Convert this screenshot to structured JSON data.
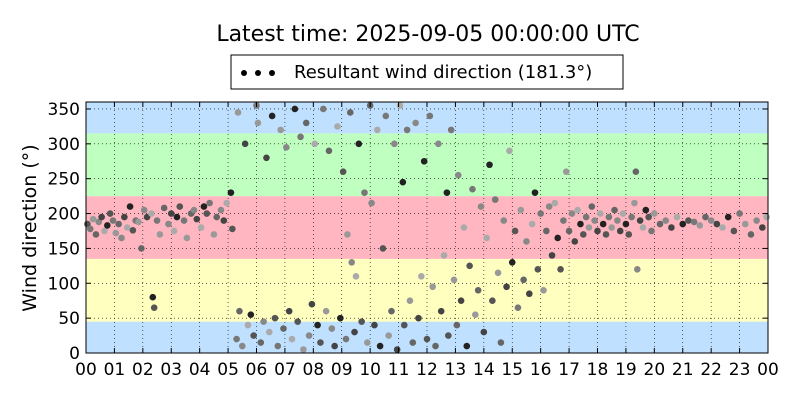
{
  "chart_data": {
    "type": "scatter",
    "title": "Latest time: 2025-09-05 00:00:00 UTC",
    "ylabel": "Wind direction (°)",
    "xlabel": "",
    "xlim": [
      0,
      24
    ],
    "ylim": [
      0,
      360
    ],
    "x_ticks": [
      "00",
      "01",
      "02",
      "03",
      "04",
      "05",
      "06",
      "07",
      "08",
      "09",
      "10",
      "11",
      "12",
      "13",
      "14",
      "15",
      "16",
      "17",
      "18",
      "19",
      "20",
      "21",
      "22",
      "23",
      "00"
    ],
    "y_ticks": [
      0,
      50,
      100,
      150,
      200,
      250,
      300,
      350
    ],
    "grid": "dotted",
    "legend": {
      "placement": "top-center",
      "label": "Resultant wind direction (181.3°)"
    },
    "bands": [
      {
        "from": 0,
        "to": 45,
        "color": "#bfe1ff"
      },
      {
        "from": 45,
        "to": 135,
        "color": "#ffffbf"
      },
      {
        "from": 135,
        "to": 225,
        "color": "#ffb6c1"
      },
      {
        "from": 225,
        "to": 315,
        "color": "#bfffbf"
      },
      {
        "from": 315,
        "to": 360,
        "color": "#bfe1ff"
      }
    ],
    "series": [
      {
        "marker": "dot",
        "points": [
          [
            0.05,
            185
          ],
          [
            0.15,
            178
          ],
          [
            0.25,
            192
          ],
          [
            0.35,
            170
          ],
          [
            0.45,
            188
          ],
          [
            0.55,
            195
          ],
          [
            0.65,
            175
          ],
          [
            0.75,
            183
          ],
          [
            0.85,
            200
          ],
          [
            0.95,
            190
          ],
          [
            1.05,
            172
          ],
          [
            1.15,
            185
          ],
          [
            1.25,
            165
          ],
          [
            1.35,
            195
          ],
          [
            1.45,
            180
          ],
          [
            1.55,
            210
          ],
          [
            1.65,
            176
          ],
          [
            1.75,
            190
          ],
          [
            1.85,
            188
          ],
          [
            1.95,
            150
          ],
          [
            2.05,
            205
          ],
          [
            2.15,
            195
          ],
          [
            2.3,
            200
          ],
          [
            2.35,
            80
          ],
          [
            2.4,
            65
          ],
          [
            2.5,
            190
          ],
          [
            2.6,
            170
          ],
          [
            2.75,
            208
          ],
          [
            2.9,
            185
          ],
          [
            3.0,
            200
          ],
          [
            3.1,
            175
          ],
          [
            3.2,
            195
          ],
          [
            3.3,
            210
          ],
          [
            3.45,
            190
          ],
          [
            3.55,
            165
          ],
          [
            3.7,
            200
          ],
          [
            3.8,
            205
          ],
          [
            3.9,
            192
          ],
          [
            4.05,
            180
          ],
          [
            4.15,
            210
          ],
          [
            4.25,
            200
          ],
          [
            4.35,
            215
          ],
          [
            4.5,
            170
          ],
          [
            4.6,
            195
          ],
          [
            4.75,
            205
          ],
          [
            4.85,
            190
          ],
          [
            4.95,
            215
          ],
          [
            5.1,
            230
          ],
          [
            5.15,
            178
          ],
          [
            5.3,
            20
          ],
          [
            5.35,
            345
          ],
          [
            5.4,
            60
          ],
          [
            5.5,
            10
          ],
          [
            5.6,
            300
          ],
          [
            5.7,
            40
          ],
          [
            5.8,
            55
          ],
          [
            5.9,
            25
          ],
          [
            6.0,
            355
          ],
          [
            6.05,
            330
          ],
          [
            6.15,
            15
          ],
          [
            6.25,
            45
          ],
          [
            6.35,
            280
          ],
          [
            6.45,
            30
          ],
          [
            6.55,
            340
          ],
          [
            6.65,
            50
          ],
          [
            6.75,
            10
          ],
          [
            6.85,
            320
          ],
          [
            6.95,
            35
          ],
          [
            7.05,
            295
          ],
          [
            7.15,
            60
          ],
          [
            7.25,
            20
          ],
          [
            7.35,
            350
          ],
          [
            7.45,
            45
          ],
          [
            7.55,
            310
          ],
          [
            7.65,
            5
          ],
          [
            7.75,
            330
          ],
          [
            7.85,
            25
          ],
          [
            7.95,
            70
          ],
          [
            8.05,
            300
          ],
          [
            8.15,
            40
          ],
          [
            8.25,
            15
          ],
          [
            8.35,
            350
          ],
          [
            8.45,
            60
          ],
          [
            8.55,
            290
          ],
          [
            8.65,
            35
          ],
          [
            8.75,
            10
          ],
          [
            8.85,
            325
          ],
          [
            8.95,
            50
          ],
          [
            9.05,
            260
          ],
          [
            9.15,
            20
          ],
          [
            9.2,
            170
          ],
          [
            9.3,
            345
          ],
          [
            9.35,
            130
          ],
          [
            9.45,
            30
          ],
          [
            9.5,
            110
          ],
          [
            9.6,
            300
          ],
          [
            9.7,
            45
          ],
          [
            9.8,
            230
          ],
          [
            9.9,
            15
          ],
          [
            10.0,
            355
          ],
          [
            10.05,
            215
          ],
          [
            10.15,
            40
          ],
          [
            10.25,
            320
          ],
          [
            10.35,
            10
          ],
          [
            10.45,
            150
          ],
          [
            10.55,
            340
          ],
          [
            10.65,
            25
          ],
          [
            10.75,
            60
          ],
          [
            10.85,
            300
          ],
          [
            10.95,
            5
          ],
          [
            11.05,
            355
          ],
          [
            11.15,
            245
          ],
          [
            11.2,
            40
          ],
          [
            11.3,
            320
          ],
          [
            11.4,
            75
          ],
          [
            11.5,
            15
          ],
          [
            11.6,
            330
          ],
          [
            11.7,
            50
          ],
          [
            11.8,
            110
          ],
          [
            11.9,
            275
          ],
          [
            12.0,
            20
          ],
          [
            12.1,
            340
          ],
          [
            12.2,
            95
          ],
          [
            12.3,
            10
          ],
          [
            12.4,
            300
          ],
          [
            12.5,
            60
          ],
          [
            12.6,
            140
          ],
          [
            12.7,
            230
          ],
          [
            12.75,
            25
          ],
          [
            12.85,
            320
          ],
          [
            12.95,
            105
          ],
          [
            13.05,
            40
          ],
          [
            13.1,
            255
          ],
          [
            13.2,
            75
          ],
          [
            13.3,
            180
          ],
          [
            13.4,
            10
          ],
          [
            13.5,
            125
          ],
          [
            13.6,
            235
          ],
          [
            13.7,
            55
          ],
          [
            13.8,
            90
          ],
          [
            13.9,
            210
          ],
          [
            14.0,
            30
          ],
          [
            14.1,
            165
          ],
          [
            14.2,
            270
          ],
          [
            14.3,
            75
          ],
          [
            14.4,
            220
          ],
          [
            14.5,
            115
          ],
          [
            14.6,
            15
          ],
          [
            14.7,
            190
          ],
          [
            14.8,
            95
          ],
          [
            14.9,
            290
          ],
          [
            15.0,
            130
          ],
          [
            15.1,
            175
          ],
          [
            15.2,
            65
          ],
          [
            15.3,
            205
          ],
          [
            15.4,
            105
          ],
          [
            15.5,
            160
          ],
          [
            15.6,
            85
          ],
          [
            15.7,
            185
          ],
          [
            15.8,
            230
          ],
          [
            15.9,
            120
          ],
          [
            16.0,
            200
          ],
          [
            16.1,
            90
          ],
          [
            16.2,
            175
          ],
          [
            16.3,
            210
          ],
          [
            16.4,
            140
          ],
          [
            16.5,
            215
          ],
          [
            16.6,
            165
          ],
          [
            16.7,
            120
          ],
          [
            16.8,
            190
          ],
          [
            16.9,
            260
          ],
          [
            17.0,
            175
          ],
          [
            17.1,
            200
          ],
          [
            17.2,
            160
          ],
          [
            17.3,
            205
          ],
          [
            17.4,
            185
          ],
          [
            17.5,
            170
          ],
          [
            17.6,
            195
          ],
          [
            17.7,
            180
          ],
          [
            17.8,
            210
          ],
          [
            17.9,
            190
          ],
          [
            18.0,
            175
          ],
          [
            18.1,
            200
          ],
          [
            18.2,
            185
          ],
          [
            18.3,
            170
          ],
          [
            18.4,
            195
          ],
          [
            18.5,
            180
          ],
          [
            18.6,
            205
          ],
          [
            18.7,
            190
          ],
          [
            18.8,
            175
          ],
          [
            18.9,
            200
          ],
          [
            19.0,
            185
          ],
          [
            19.1,
            170
          ],
          [
            19.2,
            195
          ],
          [
            19.3,
            215
          ],
          [
            19.35,
            260
          ],
          [
            19.4,
            120
          ],
          [
            19.5,
            190
          ],
          [
            19.6,
            180
          ],
          [
            19.7,
            205
          ],
          [
            19.8,
            195
          ],
          [
            19.9,
            175
          ],
          [
            20.0,
            200
          ],
          [
            20.2,
            185
          ],
          [
            20.4,
            190
          ],
          [
            20.6,
            180
          ],
          [
            20.8,
            195
          ],
          [
            21.0,
            185
          ],
          [
            21.2,
            190
          ],
          [
            21.4,
            188
          ],
          [
            21.6,
            183
          ],
          [
            21.8,
            195
          ],
          [
            22.0,
            190
          ],
          [
            22.2,
            185
          ],
          [
            22.4,
            180
          ],
          [
            22.6,
            195
          ],
          [
            22.8,
            175
          ],
          [
            23.0,
            200
          ],
          [
            23.2,
            185
          ],
          [
            23.4,
            170
          ],
          [
            23.6,
            190
          ],
          [
            23.8,
            180
          ],
          [
            23.95,
            195
          ]
        ]
      }
    ]
  }
}
